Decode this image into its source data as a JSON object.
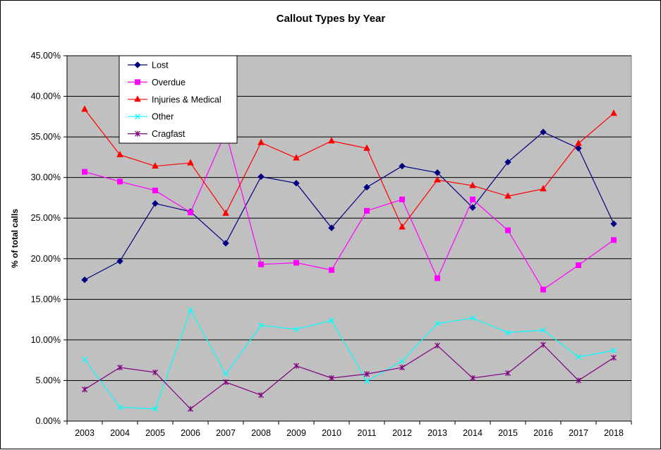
{
  "chart_data": {
    "type": "line",
    "title": "Callout Types by Year",
    "xlabel": "",
    "ylabel": "% of total calls",
    "ylim": [
      0,
      45
    ],
    "y_ticks": [
      "0.00%",
      "5.00%",
      "10.00%",
      "15.00%",
      "20.00%",
      "25.00%",
      "30.00%",
      "35.00%",
      "40.00%",
      "45.00%"
    ],
    "grid": true,
    "legend_position": "top-left",
    "plot_background": "#c0c0c0",
    "categories": [
      "2003",
      "2004",
      "2005",
      "2006",
      "2007",
      "2008",
      "2009",
      "2010",
      "2011",
      "2012",
      "2013",
      "2014",
      "2015",
      "2016",
      "2017",
      "2018"
    ],
    "series": [
      {
        "name": "Lost",
        "color": "#000080",
        "marker": "diamond",
        "values": [
          17.4,
          19.7,
          26.8,
          25.8,
          21.9,
          30.1,
          29.3,
          23.8,
          28.8,
          31.4,
          30.6,
          26.3,
          31.9,
          35.6,
          33.6,
          24.3
        ]
      },
      {
        "name": "Overdue",
        "color": "#ff00ff",
        "marker": "square",
        "values": [
          30.7,
          29.5,
          28.4,
          25.7,
          35.6,
          19.3,
          19.5,
          18.6,
          25.9,
          27.3,
          17.6,
          27.3,
          23.5,
          16.2,
          19.2,
          22.3
        ]
      },
      {
        "name": "Injuries & Medical",
        "color": "#ff0000",
        "marker": "triangle",
        "values": [
          38.4,
          32.8,
          31.4,
          31.8,
          25.6,
          34.3,
          32.4,
          34.5,
          33.6,
          23.9,
          29.7,
          29.0,
          27.7,
          28.6,
          34.2,
          37.9
        ]
      },
      {
        "name": "Other",
        "color": "#00ffff",
        "marker": "x",
        "values": [
          7.6,
          1.7,
          1.5,
          13.7,
          5.8,
          11.8,
          11.3,
          12.4,
          4.9,
          7.4,
          12.0,
          12.7,
          10.9,
          11.2,
          7.9,
          8.7
        ]
      },
      {
        "name": "Cragfast",
        "color": "#800080",
        "marker": "star",
        "values": [
          3.9,
          6.6,
          6.0,
          1.5,
          4.8,
          3.2,
          6.8,
          5.3,
          5.8,
          6.6,
          9.3,
          5.3,
          5.9,
          9.4,
          5.0,
          7.8
        ]
      }
    ]
  }
}
